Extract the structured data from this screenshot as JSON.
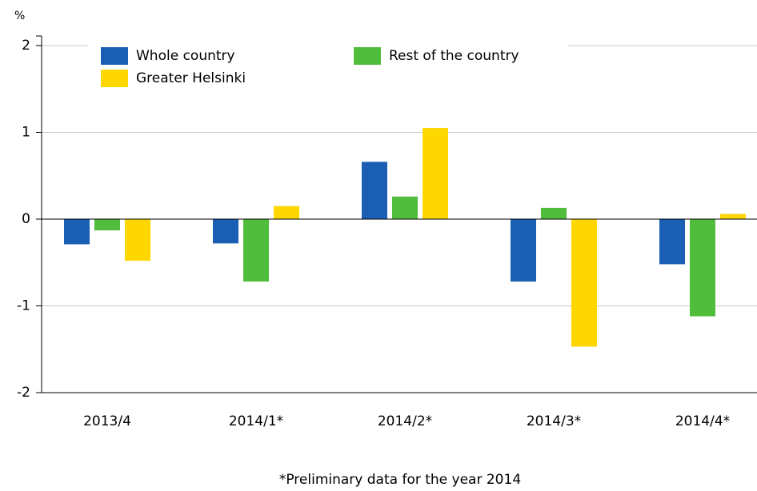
{
  "chart_data": {
    "type": "bar",
    "y_label": "%",
    "note": "*Preliminary data for the year 2014",
    "categories": [
      "2013/4",
      "2014/1*",
      "2014/2*",
      "2014/3*",
      "2014/4*"
    ],
    "series": [
      {
        "name": "Whole country",
        "color": "#1a5fb4",
        "values": [
          -0.29,
          -0.28,
          0.66,
          -0.72,
          -0.52
        ]
      },
      {
        "name": "Rest of the country",
        "color": "#50be3c",
        "values": [
          -0.13,
          -0.72,
          0.26,
          0.13,
          -1.12
        ]
      },
      {
        "name": "Greater Helsinki",
        "color": "#ffd700",
        "values": [
          -0.48,
          0.15,
          1.05,
          -1.47,
          0.06
        ]
      }
    ],
    "ylim": [
      -2,
      2
    ],
    "yticks": [
      -2,
      -1,
      0,
      1,
      2
    ],
    "grid": true,
    "legend": "upper-left"
  }
}
